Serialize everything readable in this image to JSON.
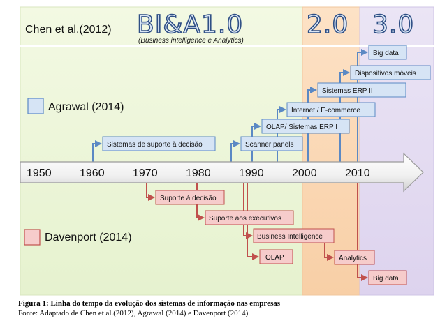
{
  "header": {
    "citation": "Chen et al.(2012)",
    "eras": [
      {
        "label": "BI&A1.0",
        "subtitle": "(Business intelligence e Analytics)"
      },
      {
        "label": "2.0"
      },
      {
        "label": "3.0"
      }
    ]
  },
  "legend": {
    "agrawal": "Agrawal (2014)",
    "davenport": "Davenport (2014)"
  },
  "timeline": {
    "years": [
      "1950",
      "1960",
      "1970",
      "1980",
      "1990",
      "2000",
      "2010"
    ]
  },
  "agrawal_items": [
    "Sistemas de suporte à decisão",
    "Scanner panels",
    "OLAP/ Sistemas ERP I",
    "Internet / E-commerce",
    "Sistemas ERP II",
    "Dispositivos móveis",
    "Big data"
  ],
  "davenport_items": [
    "Suporte à decisão",
    "Suporte aos executivos",
    "Business Intelligence",
    "OLAP",
    "Analytics",
    "Big data"
  ],
  "colors": {
    "era1_bg": "#eef6d9",
    "era2_bg": "#fbd9b8",
    "era3_bg": "#e4dcf1",
    "agrawal_line": "#5b89c4",
    "agrawal_box": "#d6e4f5",
    "davenport_line": "#c0504d",
    "davenport_box": "#f6cccb"
  },
  "caption": {
    "title": "Figura 1: Linha do tempo da evolução dos sistemas de informação nas empresas",
    "source": "Fonte: Adaptado de Chen et al.(2012), Agrawal (2014) e Davenport (2014)."
  }
}
